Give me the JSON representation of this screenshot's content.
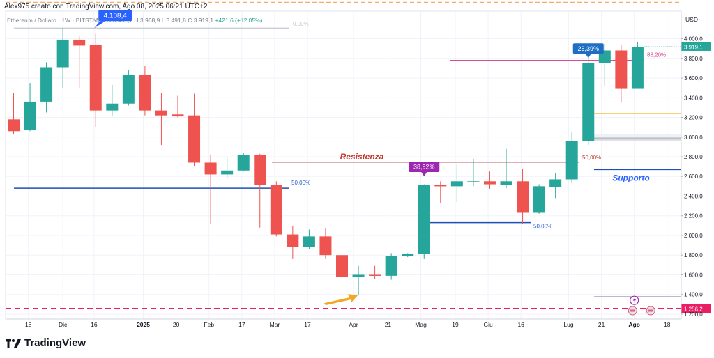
{
  "header": {
    "author_line": "Alex975 creato con TradingView.com, Ago 08, 2025 06:21 UTC+2",
    "ohlc_legend": "Ethereum / Dollaro · 1W · BITSTAMP  O 3.497,7  H 3.968,9  L 3.491,8  C 3.919,1",
    "change": "+421,6 (+12,05%)"
  },
  "branding": {
    "name": "TradingView"
  },
  "colors": {
    "up": "#26a69a",
    "down": "#ef5350",
    "blue": "#2962ff",
    "resistance": "#b2263b",
    "fib": "#d64b91",
    "magenta": "#9c27b0"
  },
  "chart_data": {
    "type": "candlestick",
    "symbol": "Ethereum / Dollaro",
    "timeframe": "1W",
    "exchange": "BITSTAMP",
    "currency_label": "USD",
    "ylim": [
      1150,
      4280
    ],
    "y_ticks": [
      1200,
      1400,
      1600,
      1800,
      2000,
      2200,
      2400,
      2600,
      2800,
      3000,
      3200,
      3400,
      3600,
      3800,
      4000
    ],
    "y_tick_labels": [
      "1.200,0",
      "1.400,0",
      "1.600,0",
      "1.800,0",
      "2.000,0",
      "2.200,0",
      "2.400,0",
      "2.600,0",
      "2.800,0",
      "3.000,0",
      "3.200,0",
      "3.400,0",
      "3.600,0",
      "3.800,0",
      "4.000,0"
    ],
    "x_labels": [
      {
        "i": 0.9,
        "label": "18"
      },
      {
        "i": 3.0,
        "label": "Dic"
      },
      {
        "i": 4.9,
        "label": "16"
      },
      {
        "i": 7.9,
        "label": "2025",
        "bold": true
      },
      {
        "i": 9.9,
        "label": "20"
      },
      {
        "i": 11.9,
        "label": "Feb"
      },
      {
        "i": 13.9,
        "label": "17"
      },
      {
        "i": 15.9,
        "label": "Mar"
      },
      {
        "i": 17.9,
        "label": "17"
      },
      {
        "i": 20.7,
        "label": "Apr"
      },
      {
        "i": 22.8,
        "label": "21"
      },
      {
        "i": 24.8,
        "label": "Mag"
      },
      {
        "i": 26.9,
        "label": "19"
      },
      {
        "i": 28.9,
        "label": "Giu"
      },
      {
        "i": 30.9,
        "label": "16"
      },
      {
        "i": 33.8,
        "label": "Lug"
      },
      {
        "i": 35.8,
        "label": "21"
      },
      {
        "i": 37.8,
        "label": "Ago",
        "bold": true
      },
      {
        "i": 39.8,
        "label": "18"
      }
    ],
    "candles": [
      {
        "o": 3180,
        "h": 3450,
        "l": 3030,
        "c": 3060
      },
      {
        "o": 3070,
        "h": 3550,
        "l": 3060,
        "c": 3360
      },
      {
        "o": 3360,
        "h": 3760,
        "l": 3250,
        "c": 3710
      },
      {
        "o": 3710,
        "h": 4108,
        "l": 3500,
        "c": 3990
      },
      {
        "o": 3990,
        "h": 4030,
        "l": 3500,
        "c": 3930
      },
      {
        "o": 3940,
        "h": 4050,
        "l": 3100,
        "c": 3270
      },
      {
        "o": 3270,
        "h": 3530,
        "l": 3210,
        "c": 3340
      },
      {
        "o": 3340,
        "h": 3680,
        "l": 3320,
        "c": 3630
      },
      {
        "o": 3630,
        "h": 3720,
        "l": 3220,
        "c": 3270
      },
      {
        "o": 3270,
        "h": 3450,
        "l": 2920,
        "c": 3220
      },
      {
        "o": 3230,
        "h": 3420,
        "l": 3200,
        "c": 3210
      },
      {
        "o": 3220,
        "h": 3440,
        "l": 2700,
        "c": 2740
      },
      {
        "o": 2740,
        "h": 2820,
        "l": 2120,
        "c": 2620
      },
      {
        "o": 2620,
        "h": 2800,
        "l": 2580,
        "c": 2660
      },
      {
        "o": 2660,
        "h": 2840,
        "l": 2650,
        "c": 2820
      },
      {
        "o": 2820,
        "h": 2830,
        "l": 2080,
        "c": 2510
      },
      {
        "o": 2510,
        "h": 2550,
        "l": 1990,
        "c": 2010
      },
      {
        "o": 2010,
        "h": 2100,
        "l": 1760,
        "c": 1880
      },
      {
        "o": 1880,
        "h": 2060,
        "l": 1860,
        "c": 1990
      },
      {
        "o": 1990,
        "h": 2070,
        "l": 1760,
        "c": 1800
      },
      {
        "o": 1800,
        "h": 1830,
        "l": 1550,
        "c": 1580
      },
      {
        "o": 1580,
        "h": 1690,
        "l": 1390,
        "c": 1600
      },
      {
        "o": 1600,
        "h": 1690,
        "l": 1560,
        "c": 1590
      },
      {
        "o": 1590,
        "h": 1820,
        "l": 1550,
        "c": 1790
      },
      {
        "o": 1790,
        "h": 1820,
        "l": 1780,
        "c": 1810
      },
      {
        "o": 1810,
        "h": 2520,
        "l": 1760,
        "c": 2510
      },
      {
        "o": 2510,
        "h": 2550,
        "l": 2330,
        "c": 2500
      },
      {
        "o": 2500,
        "h": 2730,
        "l": 2340,
        "c": 2550
      },
      {
        "o": 2550,
        "h": 2780,
        "l": 2500,
        "c": 2550
      },
      {
        "o": 2550,
        "h": 2650,
        "l": 2470,
        "c": 2520
      },
      {
        "o": 2510,
        "h": 2880,
        "l": 2480,
        "c": 2550
      },
      {
        "o": 2550,
        "h": 2680,
        "l": 2120,
        "c": 2230
      },
      {
        "o": 2230,
        "h": 2520,
        "l": 2220,
        "c": 2500
      },
      {
        "o": 2490,
        "h": 2630,
        "l": 2380,
        "c": 2570
      },
      {
        "o": 2570,
        "h": 3050,
        "l": 2530,
        "c": 2960
      },
      {
        "o": 2960,
        "h": 3860,
        "l": 2920,
        "c": 3750
      },
      {
        "o": 3750,
        "h": 3950,
        "l": 3520,
        "c": 3880
      },
      {
        "o": 3880,
        "h": 3940,
        "l": 3350,
        "c": 3490
      },
      {
        "o": 3490,
        "h": 3968.9,
        "l": 3491.8,
        "c": 3919.1
      }
    ],
    "current_price": {
      "value": 3919.1,
      "label": "3.919,1"
    },
    "levels": [
      {
        "value": 4108.4,
        "label": "0,00%"
      },
      {
        "value": 3780,
        "label": "88,20%"
      },
      {
        "value": 2745,
        "label": "50,00%"
      },
      {
        "value": 2480,
        "label": "50,00%"
      },
      {
        "value": 2670
      },
      {
        "value": 2130,
        "label": "50,00%"
      },
      {
        "value": 3240
      },
      {
        "value": 3030
      },
      {
        "value": 2990
      },
      {
        "value": 2970
      },
      {
        "value": 1380
      },
      {
        "value": 4370
      },
      {
        "value": 1256.2,
        "label": "1.256,2"
      }
    ],
    "annotations": {
      "high_label": "4.108,4",
      "resistance_text": "Resistenza",
      "support_text": "Supporto",
      "pct_38": "38,92%",
      "pct_26": "26,39%"
    },
    "grid": true
  }
}
